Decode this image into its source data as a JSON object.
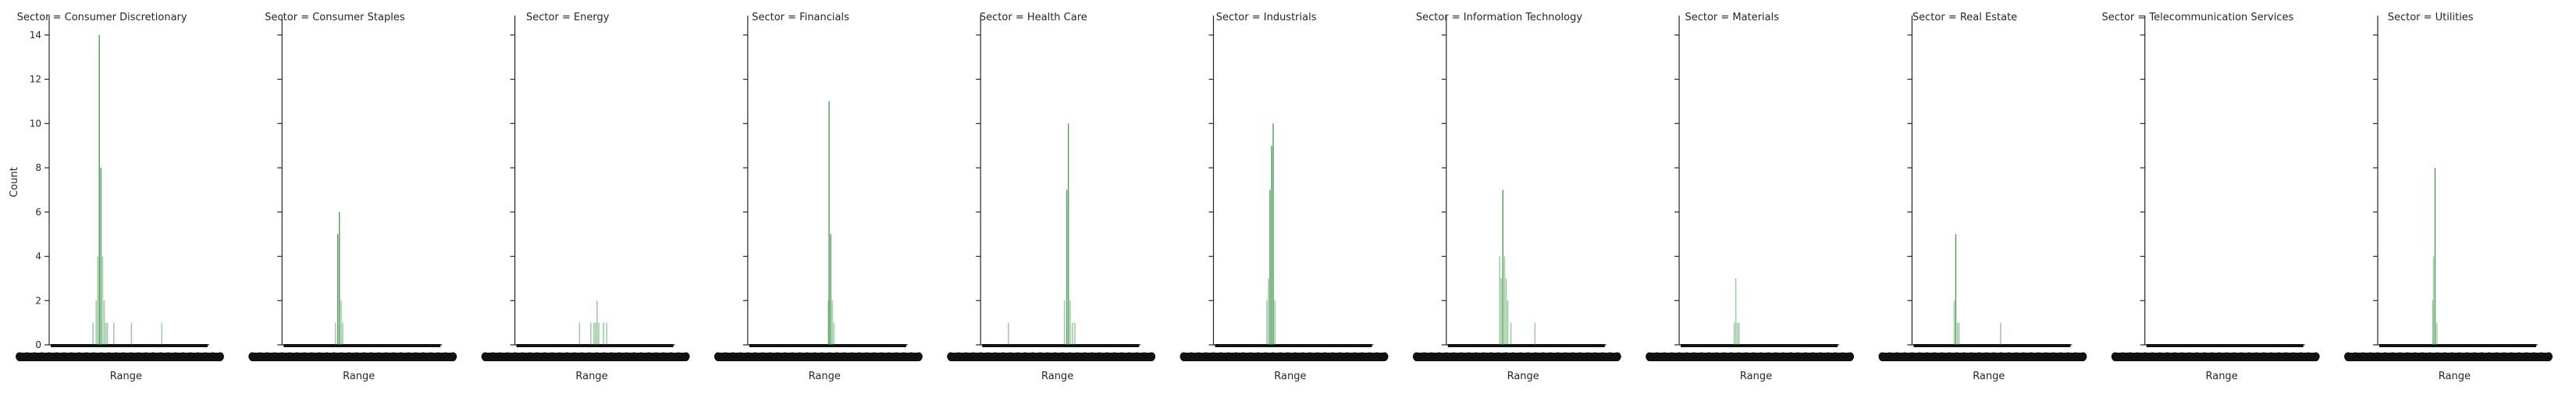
{
  "chart_data": {
    "type": "bar",
    "ylabel": "Count",
    "xlabel": "Range",
    "ylim": [
      0,
      14.7
    ],
    "yticks": [
      0,
      2,
      4,
      6,
      8,
      10,
      12,
      14
    ],
    "bar_color": "#2e8b3c",
    "grid": false,
    "legend": "none",
    "panels": [
      {
        "title": "Sector = Consumer Discretionary",
        "bars": [
          {
            "x": 0.27,
            "value": 1
          },
          {
            "x": 0.29,
            "value": 2
          },
          {
            "x": 0.3,
            "value": 4
          },
          {
            "x": 0.31,
            "value": 14
          },
          {
            "x": 0.32,
            "value": 8
          },
          {
            "x": 0.33,
            "value": 4
          },
          {
            "x": 0.34,
            "value": 2
          },
          {
            "x": 0.35,
            "value": 1
          },
          {
            "x": 0.36,
            "value": 1
          },
          {
            "x": 0.4,
            "value": 1
          },
          {
            "x": 0.51,
            "value": 1
          },
          {
            "x": 0.7,
            "value": 1
          }
        ]
      },
      {
        "title": "Sector = Consumer Staples",
        "bars": [
          {
            "x": 0.33,
            "value": 1
          },
          {
            "x": 0.345,
            "value": 5
          },
          {
            "x": 0.355,
            "value": 6
          },
          {
            "x": 0.365,
            "value": 2
          },
          {
            "x": 0.375,
            "value": 1
          }
        ]
      },
      {
        "title": "Sector = Energy",
        "bars": [
          {
            "x": 0.4,
            "value": 1
          },
          {
            "x": 0.47,
            "value": 1
          },
          {
            "x": 0.49,
            "value": 1
          },
          {
            "x": 0.5,
            "value": 1
          },
          {
            "x": 0.51,
            "value": 2
          },
          {
            "x": 0.52,
            "value": 1
          },
          {
            "x": 0.55,
            "value": 1
          },
          {
            "x": 0.57,
            "value": 1
          }
        ]
      },
      {
        "title": "Sector = Financials",
        "bars": [
          {
            "x": 0.5,
            "value": 2
          },
          {
            "x": 0.505,
            "value": 11
          },
          {
            "x": 0.515,
            "value": 5
          },
          {
            "x": 0.525,
            "value": 2
          },
          {
            "x": 0.535,
            "value": 1
          }
        ]
      },
      {
        "title": "Sector = Health Care",
        "bars": [
          {
            "x": 0.17,
            "value": 1
          },
          {
            "x": 0.52,
            "value": 2
          },
          {
            "x": 0.535,
            "value": 7
          },
          {
            "x": 0.545,
            "value": 10
          },
          {
            "x": 0.555,
            "value": 2
          },
          {
            "x": 0.57,
            "value": 1
          },
          {
            "x": 0.585,
            "value": 1
          }
        ]
      },
      {
        "title": "Sector = Industrials",
        "bars": [
          {
            "x": 0.33,
            "value": 2
          },
          {
            "x": 0.34,
            "value": 3
          },
          {
            "x": 0.35,
            "value": 7
          },
          {
            "x": 0.36,
            "value": 9
          },
          {
            "x": 0.37,
            "value": 10
          },
          {
            "x": 0.38,
            "value": 2
          }
        ]
      },
      {
        "title": "Sector = Information Technology",
        "bars": [
          {
            "x": 0.33,
            "value": 4
          },
          {
            "x": 0.34,
            "value": 3
          },
          {
            "x": 0.35,
            "value": 7
          },
          {
            "x": 0.36,
            "value": 4
          },
          {
            "x": 0.37,
            "value": 3
          },
          {
            "x": 0.38,
            "value": 2
          },
          {
            "x": 0.4,
            "value": 1
          },
          {
            "x": 0.55,
            "value": 1
          }
        ]
      },
      {
        "title": "Sector = Materials",
        "bars": [
          {
            "x": 0.34,
            "value": 1
          },
          {
            "x": 0.35,
            "value": 3
          },
          {
            "x": 0.36,
            "value": 1
          },
          {
            "x": 0.37,
            "value": 1
          }
        ]
      },
      {
        "title": "Sector = Real Estate",
        "bars": [
          {
            "x": 0.26,
            "value": 2
          },
          {
            "x": 0.27,
            "value": 5
          },
          {
            "x": 0.28,
            "value": 1
          },
          {
            "x": 0.29,
            "value": 1
          },
          {
            "x": 0.55,
            "value": 1
          }
        ]
      },
      {
        "title": "Sector = Telecommunication Services",
        "bars": []
      },
      {
        "title": "Sector = Utilities",
        "bars": [
          {
            "x": 0.34,
            "value": 2
          },
          {
            "x": 0.345,
            "value": 4
          },
          {
            "x": 0.355,
            "value": 8
          },
          {
            "x": 0.365,
            "value": 1
          }
        ]
      }
    ]
  }
}
